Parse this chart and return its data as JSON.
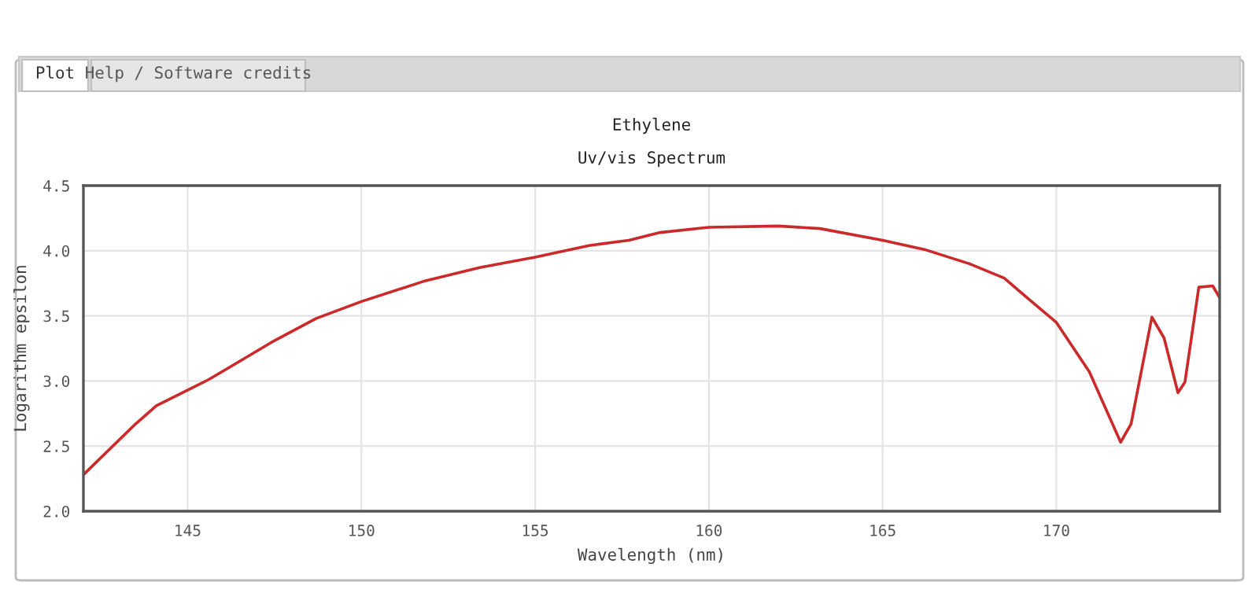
{
  "chart_data": {
    "type": "line",
    "title": "Ethylene",
    "subtitle": "Uv/vis Spectrum",
    "xlabel": "Wavelength (nm)",
    "ylabel": "Logarithm epsilon",
    "annotations": [
      "Plot",
      "Help / Software credits"
    ],
    "series": [
      {
        "color": "#cc2a2a",
        "x": [
          142.0,
          143.5,
          144.1,
          145.6,
          146.3,
          147.5,
          148.7,
          150.0,
          151.85,
          153.4,
          155.0,
          156.55,
          157.7,
          158.6,
          160.0,
          162.0,
          163.2,
          165.0,
          166.2,
          167.5,
          168.5,
          169.2,
          170.0,
          170.95,
          171.85,
          172.15,
          172.75,
          173.1,
          173.5,
          173.7,
          174.1,
          174.5,
          174.7
        ],
        "values": [
          2.28,
          2.67,
          2.81,
          3.01,
          3.12,
          3.31,
          3.48,
          3.61,
          3.77,
          3.87,
          3.95,
          4.04,
          4.08,
          4.14,
          4.18,
          4.19,
          4.17,
          4.08,
          4.01,
          3.9,
          3.79,
          3.63,
          3.45,
          3.07,
          2.53,
          2.67,
          3.49,
          3.33,
          2.91,
          2.99,
          3.72,
          3.73,
          3.64
        ]
      }
    ],
    "xlim": [
      142.0,
      174.7
    ],
    "ylim": [
      2.0,
      4.5
    ],
    "xticks": [
      145,
      150,
      155,
      160,
      165,
      170
    ],
    "yticks": [
      {
        "value": 2.0,
        "label": "2.0"
      },
      {
        "value": 2.5,
        "label": "2.5"
      },
      {
        "value": 3.0,
        "label": "3.0"
      },
      {
        "value": 3.5,
        "label": "3.5"
      },
      {
        "value": 4.0,
        "label": "4.0"
      },
      {
        "value": 4.5,
        "label": "4.5"
      }
    ],
    "grid": true,
    "legend": false,
    "marker": "none",
    "line_style": "solid"
  }
}
